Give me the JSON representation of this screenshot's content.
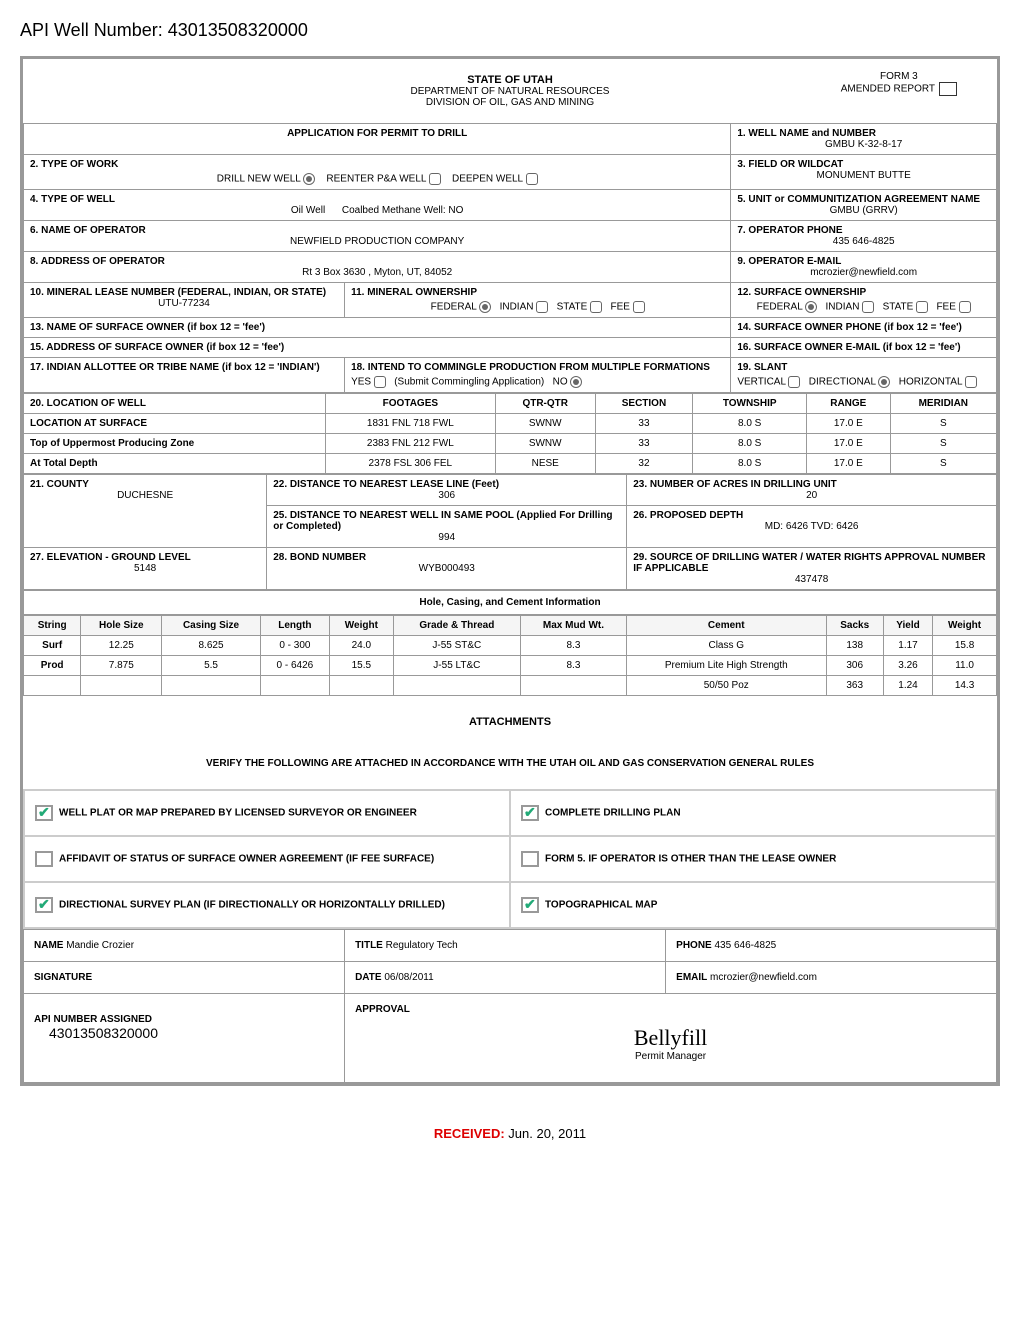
{
  "api_header": "API Well Number: 43013508320000",
  "header": {
    "state": "STATE OF UTAH",
    "dept1": "DEPARTMENT OF NATURAL RESOURCES",
    "dept2": "DIVISION OF OIL, GAS AND MINING",
    "form3": "FORM 3",
    "amended": "AMENDED REPORT"
  },
  "rows": {
    "app_title": "APPLICATION FOR PERMIT TO DRILL",
    "well_name_lbl": "1. WELL NAME and NUMBER",
    "well_name_val": "GMBU K-32-8-17",
    "type_work_lbl": "2. TYPE OF WORK",
    "drill_new": "DRILL NEW WELL",
    "reenter": "REENTER P&A WELL",
    "deepen": "DEEPEN WELL",
    "field_lbl": "3. FIELD OR WILDCAT",
    "field_val": "MONUMENT BUTTE",
    "type_well_lbl": "4. TYPE OF WELL",
    "type_well_val": "Oil Well",
    "coalbed": "Coalbed Methane Well: NO",
    "unit_lbl": "5. UNIT or COMMUNITIZATION AGREEMENT NAME",
    "unit_val": "GMBU (GRRV)",
    "operator_lbl": "6. NAME OF OPERATOR",
    "operator_val": "NEWFIELD PRODUCTION COMPANY",
    "phone_lbl": "7. OPERATOR PHONE",
    "phone_val": "435 646-4825",
    "addr_lbl": "8. ADDRESS OF OPERATOR",
    "addr_val": "Rt 3 Box 3630 , Myton, UT, 84052",
    "email_lbl": "9. OPERATOR E-MAIL",
    "email_val": "mcrozier@newfield.com",
    "lease_lbl": "10. MINERAL LEASE NUMBER (FEDERAL, INDIAN, OR STATE)",
    "lease_val": "UTU-77234",
    "min_own_lbl": "11. MINERAL OWNERSHIP",
    "federal": "FEDERAL",
    "indian": "INDIAN",
    "state": "STATE",
    "fee": "FEE",
    "surf_own_lbl": "12. SURFACE OWNERSHIP",
    "surf_name_lbl": "13. NAME OF SURFACE OWNER (if box 12 = 'fee')",
    "surf_phone_lbl": "14. SURFACE OWNER PHONE (if box 12 = 'fee')",
    "surf_addr_lbl": "15. ADDRESS OF SURFACE OWNER (if box 12 = 'fee')",
    "surf_email_lbl": "16. SURFACE OWNER E-MAIL (if box 12 = 'fee')",
    "allottee_lbl": "17. INDIAN ALLOTTEE OR TRIBE NAME (if box 12 = 'INDIAN')",
    "commingle_lbl": "18. INTEND TO COMMINGLE PRODUCTION FROM MULTIPLE FORMATIONS",
    "yes": "YES",
    "submit_comm": "(Submit Commingling Application)",
    "no": "NO",
    "slant_lbl": "19. SLANT",
    "vertical": "VERTICAL",
    "directional": "DIRECTIONAL",
    "horizontal": "HORIZONTAL",
    "loc_lbl": "20. LOCATION OF WELL",
    "footages": "FOOTAGES",
    "qtr": "QTR-QTR",
    "section": "SECTION",
    "township": "TOWNSHIP",
    "range": "RANGE",
    "meridian": "MERIDIAN",
    "loc_surf": "LOCATION AT SURFACE",
    "loc_surf_foot": "1831 FNL  718 FWL",
    "loc_surf_qtr": "SWNW",
    "loc_surf_sec": "33",
    "loc_surf_twn": "8.0 S",
    "loc_surf_rng": "17.0 E",
    "loc_surf_mer": "S",
    "top_prod": "Top of Uppermost Producing Zone",
    "top_foot": "2383 FNL  212 FWL",
    "top_qtr": "SWNW",
    "top_sec": "33",
    "top_twn": "8.0 S",
    "top_rng": "17.0 E",
    "top_mer": "S",
    "at_depth": "At Total Depth",
    "depth_foot": "2378 FSL  306 FEL",
    "depth_qtr": "NESE",
    "depth_sec": "32",
    "depth_twn": "8.0 S",
    "depth_rng": "17.0 E",
    "depth_mer": "S",
    "county_lbl": "21. COUNTY",
    "county_val": "DUCHESNE",
    "dist_lease_lbl": "22. DISTANCE TO NEAREST LEASE LINE (Feet)",
    "dist_lease_val": "306",
    "acres_lbl": "23. NUMBER OF ACRES IN DRILLING UNIT",
    "acres_val": "20",
    "dist_well_lbl": "25. DISTANCE TO NEAREST WELL IN SAME POOL (Applied For Drilling or Completed)",
    "dist_well_val": "994",
    "prop_depth_lbl": "26. PROPOSED DEPTH",
    "prop_depth_val": "MD: 6426    TVD: 6426",
    "elev_lbl": "27. ELEVATION - GROUND LEVEL",
    "elev_val": "5148",
    "bond_lbl": "28. BOND NUMBER",
    "bond_val": "WYB000493",
    "source_lbl": "29. SOURCE OF DRILLING WATER / WATER RIGHTS APPROVAL NUMBER IF APPLICABLE",
    "source_val": "437478",
    "hole_title": "Hole, Casing, and Cement Information"
  },
  "casing": {
    "headers": [
      "String",
      "Hole Size",
      "Casing Size",
      "Length",
      "Weight",
      "Grade & Thread",
      "Max Mud Wt.",
      "Cement",
      "Sacks",
      "Yield",
      "Weight"
    ],
    "rows": [
      [
        "Surf",
        "12.25",
        "8.625",
        "0 - 300",
        "24.0",
        "J-55 ST&C",
        "8.3",
        "Class G",
        "138",
        "1.17",
        "15.8"
      ],
      [
        "Prod",
        "7.875",
        "5.5",
        "0 - 6426",
        "15.5",
        "J-55 LT&C",
        "8.3",
        "Premium Lite High Strength",
        "306",
        "3.26",
        "11.0"
      ],
      [
        "",
        "",
        "",
        "",
        "",
        "",
        "",
        "50/50 Poz",
        "363",
        "1.24",
        "14.3"
      ]
    ]
  },
  "att": {
    "title": "ATTACHMENTS",
    "verify": "VERIFY THE FOLLOWING ARE ATTACHED IN ACCORDANCE WITH THE UTAH OIL AND GAS CONSERVATION GENERAL RULES",
    "plat": "WELL PLAT OR MAP PREPARED BY LICENSED SURVEYOR OR ENGINEER",
    "plan": "COMPLETE DRILLING PLAN",
    "affidavit": "AFFIDAVIT OF STATUS OF SURFACE OWNER AGREEMENT (IF FEE SURFACE)",
    "form5": "FORM 5. IF OPERATOR IS OTHER THAN THE LEASE OWNER",
    "survey": "DIRECTIONAL SURVEY PLAN (IF DIRECTIONALLY OR HORIZONTALLY DRILLED)",
    "topo": "TOPOGRAPHICAL MAP"
  },
  "sig": {
    "name_lbl": "NAME",
    "name_val": "Mandie Crozier",
    "title_lbl": "TITLE",
    "title_val": "Regulatory Tech",
    "phone_lbl": "PHONE",
    "phone_val": "435 646-4825",
    "sig_lbl": "SIGNATURE",
    "date_lbl": "DATE",
    "date_val": "06/08/2011",
    "email_lbl": "EMAIL",
    "email_val": "mcrozier@newfield.com",
    "api_lbl": "API NUMBER ASSIGNED",
    "api_val": "43013508320000",
    "approval": "APPROVAL",
    "pm": "Permit Manager"
  },
  "received": {
    "lbl": "RECEIVED:",
    "val": " Jun. 20, 2011"
  }
}
